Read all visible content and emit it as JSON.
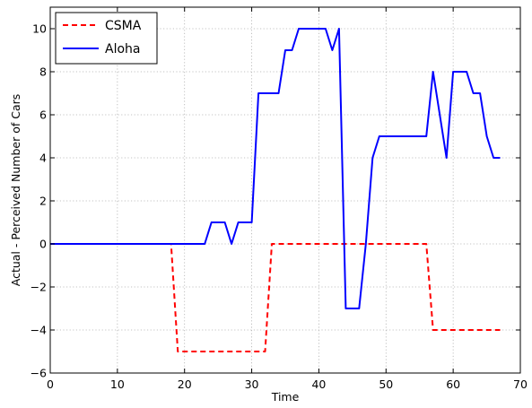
{
  "chart_data": {
    "type": "line",
    "title": "",
    "xlabel": "Time",
    "ylabel": "Actual - Perceived Number of Cars",
    "xlim": [
      0,
      70
    ],
    "ylim": [
      -6,
      11
    ],
    "xticks": [
      0,
      10,
      20,
      30,
      40,
      50,
      60,
      70
    ],
    "yticks": [
      -6,
      -4,
      -2,
      0,
      2,
      4,
      6,
      8,
      10
    ],
    "tick_labels_x": [
      "0",
      "10",
      "20",
      "30",
      "40",
      "50",
      "60",
      "70"
    ],
    "tick_labels_y": [
      "−6",
      "−4",
      "−2",
      "0",
      "2",
      "4",
      "6",
      "8",
      "10"
    ],
    "grid": true,
    "legend": "top-left",
    "series": [
      {
        "name": "CSMA",
        "color": "#ff0000",
        "style": "dashed",
        "x": [
          0,
          18,
          19,
          31,
          32,
          33,
          56,
          57,
          67
        ],
        "y": [
          0,
          0,
          -5,
          -5,
          -5,
          0,
          0,
          -4,
          -4
        ]
      },
      {
        "name": "Aloha",
        "color": "#0000ff",
        "style": "solid",
        "x": [
          0,
          23,
          24,
          26,
          27,
          28,
          30,
          31,
          34,
          35,
          36,
          37,
          41,
          42,
          43,
          44,
          46,
          47,
          48,
          49,
          56,
          57,
          59,
          60,
          62,
          63,
          64,
          65,
          66,
          67
        ],
        "y": [
          0,
          0,
          1,
          1,
          0,
          1,
          1,
          7,
          7,
          9,
          9,
          10,
          10,
          9,
          10,
          -3,
          -3,
          0,
          4,
          5,
          5,
          8,
          4,
          8,
          8,
          7,
          7,
          5,
          4,
          4
        ]
      }
    ]
  }
}
